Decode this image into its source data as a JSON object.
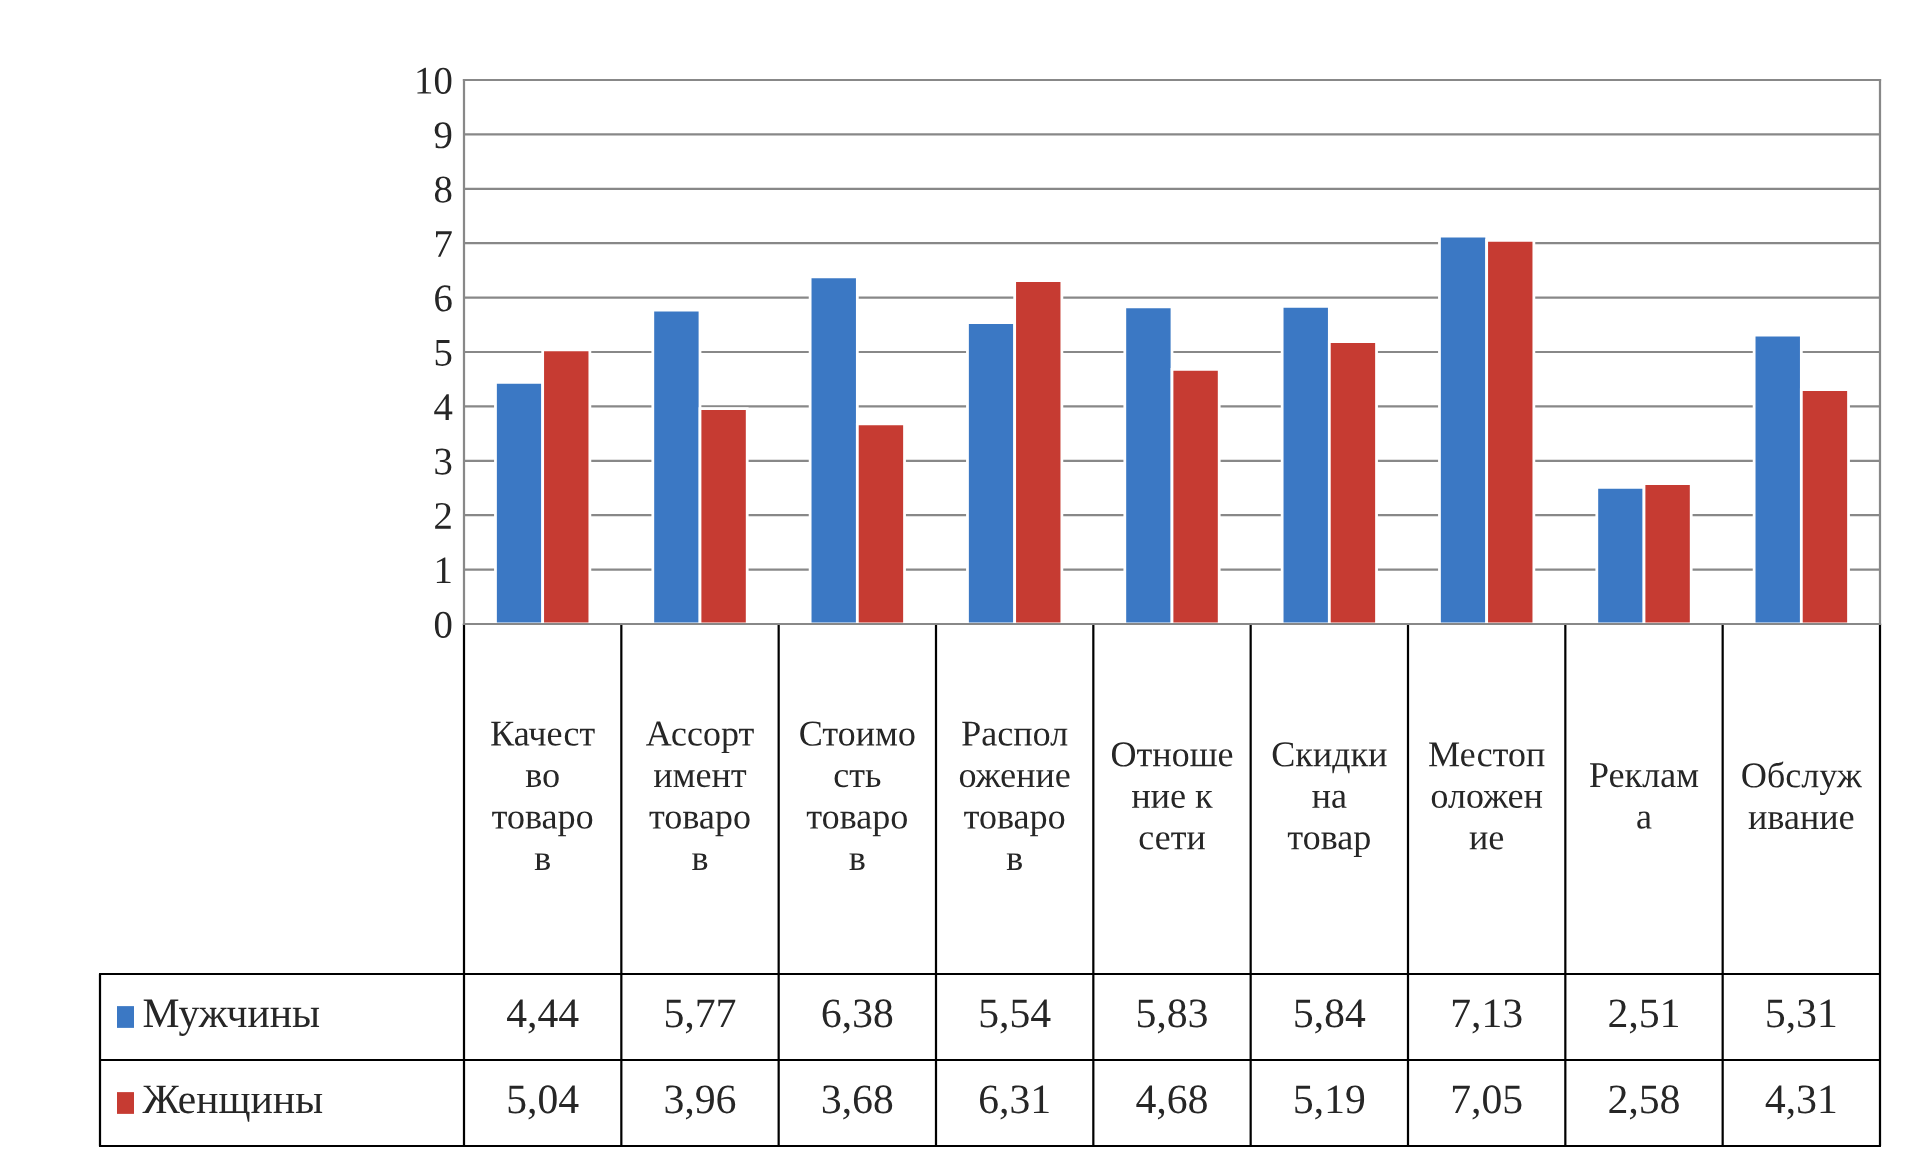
{
  "chart_data": {
    "type": "bar",
    "categories": [
      "Качество товаров",
      "Ассортимент товаров",
      "Стоимость товаров",
      "Расположение товаров",
      "Отношение к сети",
      "Скидки на товар",
      "Местоположение",
      "Реклама",
      "Обслуживание"
    ],
    "series": [
      {
        "name": "Мужчины",
        "color": "#3b78c4",
        "values": [
          4.44,
          5.77,
          6.38,
          5.54,
          5.83,
          5.84,
          7.13,
          2.51,
          5.31
        ],
        "value_labels": [
          "4,44",
          "5,77",
          "6,38",
          "5,54",
          "5,83",
          "5,84",
          "7,13",
          "2,51",
          "5,31"
        ]
      },
      {
        "name": "Женщины",
        "color": "#c63b32",
        "values": [
          5.04,
          3.96,
          3.68,
          6.31,
          4.68,
          5.19,
          7.05,
          2.58,
          4.31
        ],
        "value_labels": [
          "5,04",
          "3,96",
          "3,68",
          "6,31",
          "4,68",
          "5,19",
          "7,05",
          "2,58",
          "4,31"
        ]
      }
    ],
    "ylim": [
      0,
      10
    ],
    "yticks": [
      0,
      1,
      2,
      3,
      4,
      5,
      6,
      7,
      8,
      9,
      10
    ],
    "grid": "y",
    "legend": "bottom"
  }
}
